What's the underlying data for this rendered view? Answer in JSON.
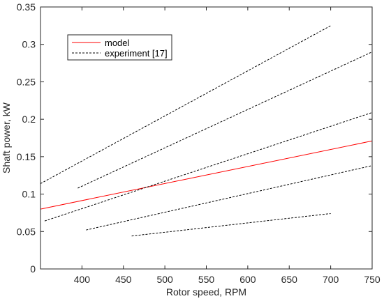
{
  "chart_data": {
    "type": "line",
    "xlabel": "Rotor speed, RPM",
    "ylabel": "Shaft power, kW",
    "xlim": [
      350,
      750
    ],
    "ylim": [
      0,
      0.35
    ],
    "xticks": [
      400,
      450,
      500,
      550,
      600,
      650,
      700,
      750
    ],
    "xtick_labels": [
      "400",
      "450",
      "500",
      "550",
      "600",
      "650",
      "700",
      "750"
    ],
    "yticks": [
      0,
      0.05,
      0.1,
      0.15,
      0.2,
      0.25,
      0.3,
      0.35
    ],
    "ytick_labels": [
      "0",
      "0.05",
      "0.1",
      "0.15",
      "0.2",
      "0.25",
      "0.3",
      "0.35"
    ],
    "grid": false,
    "legend_position": "top-left",
    "legend": [
      {
        "label": "model",
        "color": "#ff0000",
        "style": "solid"
      },
      {
        "label": "experiment [17]",
        "color": "#000000",
        "style": "dashed"
      }
    ],
    "series": [
      {
        "name": "model",
        "color": "#ff0000",
        "style": "solid",
        "x": [
          350,
          750
        ],
        "y": [
          0.08,
          0.171
        ]
      },
      {
        "color": "#000000",
        "style": "dashed",
        "x": [
          350,
          700
        ],
        "y": [
          0.114,
          0.325
        ]
      },
      {
        "color": "#000000",
        "style": "dashed",
        "x": [
          395,
          750
        ],
        "y": [
          0.108,
          0.29
        ]
      },
      {
        "color": "#000000",
        "style": "dashed",
        "x": [
          355,
          750
        ],
        "y": [
          0.064,
          0.209
        ]
      },
      {
        "color": "#000000",
        "style": "dashed",
        "x": [
          405,
          750
        ],
        "y": [
          0.052,
          0.138
        ]
      },
      {
        "color": "#000000",
        "style": "dashed",
        "x": [
          460,
          700
        ],
        "y": [
          0.044,
          0.074
        ]
      }
    ]
  }
}
